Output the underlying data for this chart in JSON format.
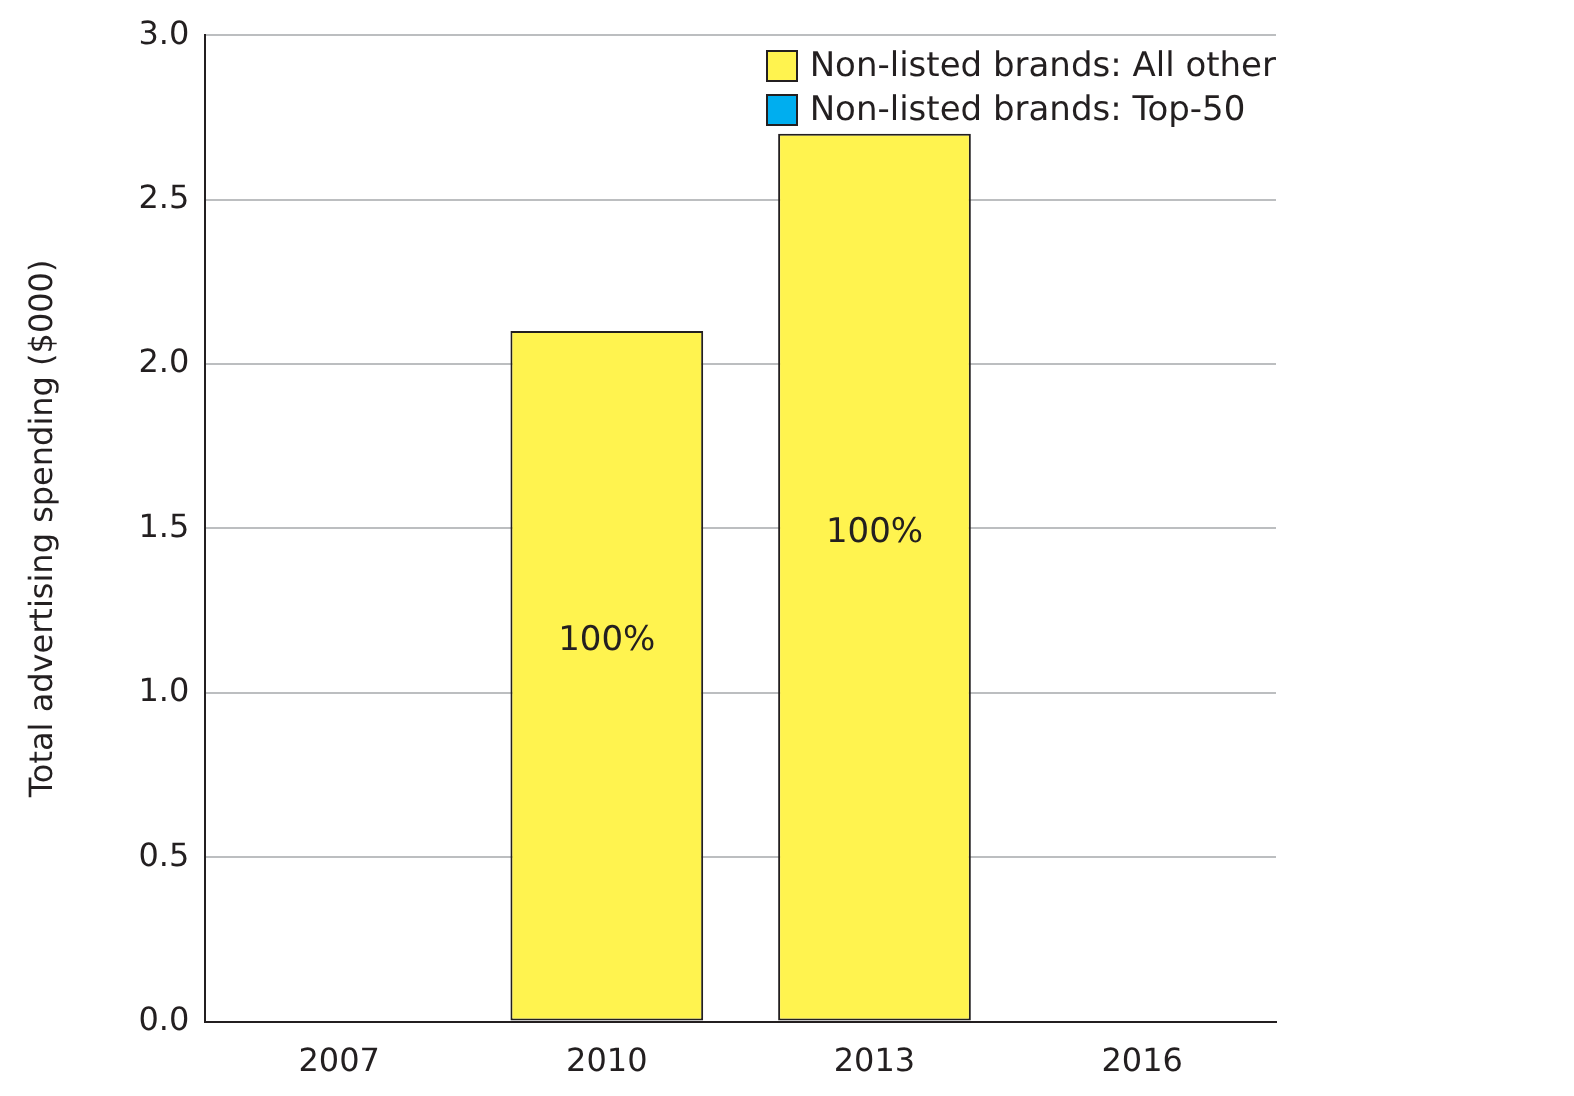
{
  "chart_data": {
    "type": "bar",
    "ylabel": "Total advertising spending ($000)",
    "categories": [
      "2007",
      "2010",
      "2013",
      "2016"
    ],
    "stacked": true,
    "series": [
      {
        "name": "Non-listed brands: All other",
        "color": "#fff34f",
        "values": [
          0,
          2.1,
          2.7,
          0
        ]
      },
      {
        "name": "Non-listed brands: Top-50",
        "color": "#00aeef",
        "values": [
          0,
          0,
          0,
          0
        ]
      }
    ],
    "ylim": [
      0,
      3
    ],
    "yticks": [
      {
        "value": 0,
        "label": "0.0"
      },
      {
        "value": 0.5,
        "label": "0.5"
      },
      {
        "value": 1,
        "label": "1.0"
      },
      {
        "value": 1.5,
        "label": "1.5"
      },
      {
        "value": 2,
        "label": "2.0"
      },
      {
        "value": 2.5,
        "label": "2.5"
      },
      {
        "value": 3,
        "label": "3.0"
      }
    ],
    "annotations": [
      "100%",
      "100%"
    ],
    "grid": "y",
    "legend": "top right"
  }
}
